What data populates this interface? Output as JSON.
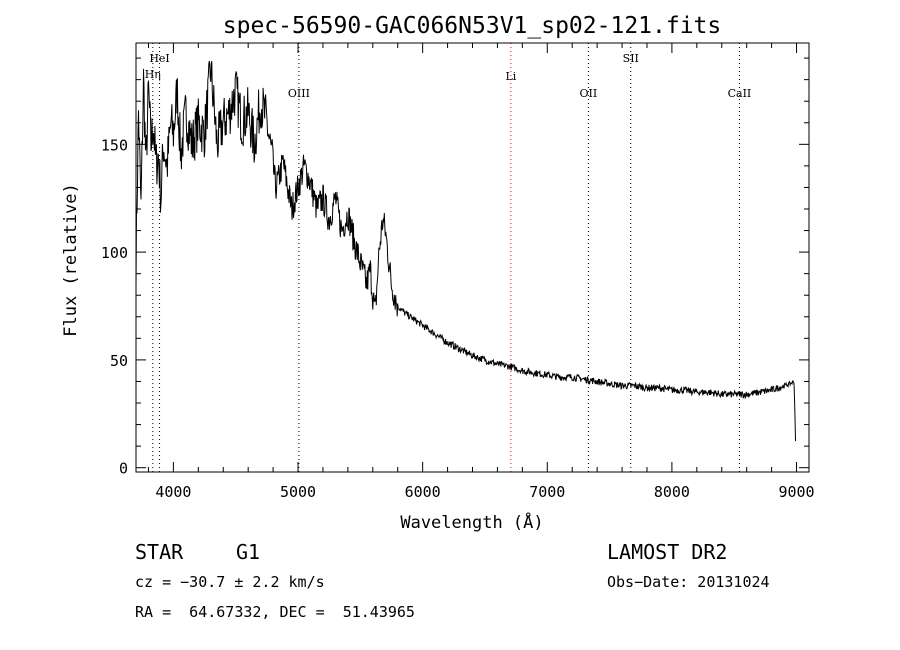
{
  "chart_data": {
    "type": "line",
    "title": "spec-56590-GAC066N53V1_sp02-121.fits",
    "xlabel": "Wavelength (Å)",
    "ylabel": "Flux (relative)",
    "xlim": [
      3700,
      9100
    ],
    "ylim": [
      -2,
      197
    ],
    "xticks": [
      4000,
      5000,
      6000,
      7000,
      8000,
      9000
    ],
    "yticks": [
      0,
      50,
      100,
      150
    ],
    "grid": false,
    "series": [
      {
        "color": "#000000",
        "x": [
          3700,
          3720,
          3740,
          3760,
          3780,
          3800,
          3820,
          3840,
          3860,
          3880,
          3900,
          3920,
          3950,
          3980,
          4000,
          4030,
          4060,
          4100,
          4150,
          4200,
          4250,
          4300,
          4350,
          4400,
          4450,
          4500,
          4550,
          4600,
          4650,
          4700,
          4750,
          4800,
          4820,
          4850,
          4880,
          4900,
          4950,
          5000,
          5050,
          5100,
          5150,
          5200,
          5250,
          5300,
          5350,
          5400,
          5450,
          5500,
          5550,
          5580,
          5600,
          5620,
          5650,
          5680,
          5700,
          5750,
          5800,
          5850,
          5900,
          5950,
          6000,
          6100,
          6200,
          6300,
          6400,
          6500,
          6600,
          6700,
          6800,
          6900,
          7000,
          7100,
          7200,
          7300,
          7400,
          7500,
          7600,
          7700,
          7800,
          7900,
          8000,
          8100,
          8200,
          8300,
          8400,
          8500,
          8600,
          8700,
          8800,
          8850,
          8900,
          8950,
          8980,
          8990,
          8995
        ],
        "y": [
          95,
          165,
          120,
          180,
          140,
          175,
          150,
          160,
          140,
          145,
          125,
          150,
          140,
          160,
          155,
          175,
          145,
          165,
          150,
          160,
          155,
          185,
          150,
          160,
          165,
          175,
          160,
          165,
          150,
          170,
          160,
          140,
          130,
          135,
          142,
          135,
          120,
          130,
          140,
          132,
          120,
          125,
          115,
          125,
          110,
          118,
          105,
          95,
          85,
          92,
          80,
          72,
          100,
          115,
          110,
          85,
          75,
          72,
          70,
          68,
          66,
          62,
          58,
          55,
          52,
          50,
          48,
          47,
          45,
          44,
          43,
          42,
          42,
          41,
          40,
          39,
          38,
          38,
          37,
          37,
          36,
          36,
          35,
          35,
          34,
          34,
          34,
          35,
          36,
          37,
          38,
          39,
          40,
          20,
          2
        ]
      }
    ],
    "lines": [
      {
        "label": "HeI",
        "x": 3889,
        "color": "#000000"
      },
      {
        "label": "Hη",
        "x": 3835,
        "color": "#000000"
      },
      {
        "label": "OIII",
        "x": 5007,
        "color": "#000000"
      },
      {
        "label": "Li",
        "x": 6708,
        "color": "#ff0000"
      },
      {
        "label": "OII",
        "x": 7330,
        "color": "#000000"
      },
      {
        "label": "SII",
        "x": 7670,
        "color": "#000000"
      },
      {
        "label": "CaII",
        "x": 8542,
        "color": "#000000"
      }
    ]
  },
  "info": {
    "class": "STAR",
    "subclass": "G1",
    "survey": "LAMOST DR2",
    "cz": "cz = −30.7 ± 2.2 km/s",
    "obs_date": "Obs−Date: 20131024",
    "radec": "RA =  64.67332, DEC =  51.43965"
  }
}
